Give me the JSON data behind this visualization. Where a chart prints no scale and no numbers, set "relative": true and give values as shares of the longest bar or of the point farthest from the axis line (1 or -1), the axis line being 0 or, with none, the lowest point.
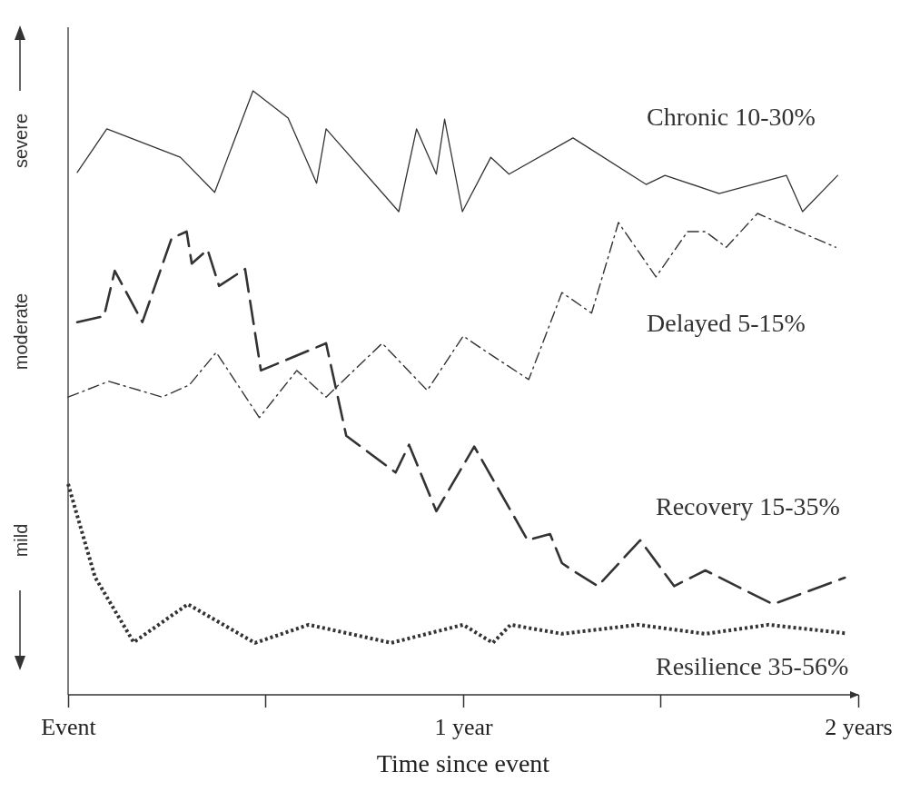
{
  "chart_data": {
    "type": "line",
    "relative": true,
    "xlabel": "Time since event",
    "annotations": [
      "severe",
      "moderate",
      "mild"
    ],
    "xlim": [
      0,
      2
    ],
    "xticks": [
      {
        "value": 0,
        "label": "Event"
      },
      {
        "value": 1,
        "label": "1 year"
      },
      {
        "value": 2,
        "label": "2 years"
      }
    ],
    "series": [
      {
        "name": "Chronic 10-30%",
        "color": "#333333",
        "line_style": "solid",
        "x": [
          0.023,
          0.098,
          0.284,
          0.371,
          0.468,
          0.557,
          0.629,
          0.653,
          0.837,
          0.882,
          0.932,
          0.953,
          0.998,
          1.07,
          1.116,
          1.278,
          1.463,
          1.511,
          1.648,
          1.818,
          1.859,
          1.948
        ],
        "values": [
          0.865,
          0.937,
          0.89,
          0.832,
          1.0,
          0.955,
          0.847,
          0.937,
          0.8,
          0.937,
          0.862,
          0.953,
          0.8,
          0.89,
          0.862,
          0.922,
          0.845,
          0.86,
          0.83,
          0.86,
          0.8,
          0.86
        ]
      },
      {
        "name": "Delayed 5-15%",
        "color": "#333333",
        "line_style": "dashdot",
        "x": [
          0,
          0.103,
          0.238,
          0.307,
          0.375,
          0.484,
          0.579,
          0.653,
          0.795,
          0.909,
          1.0,
          1.068,
          1.166,
          1.25,
          1.325,
          1.393,
          1.488,
          1.568,
          1.613,
          1.666,
          1.745,
          1.943
        ],
        "values": [
          0.493,
          0.519,
          0.493,
          0.513,
          0.567,
          0.459,
          0.537,
          0.493,
          0.582,
          0.504,
          0.594,
          0.564,
          0.522,
          0.666,
          0.632,
          0.782,
          0.692,
          0.767,
          0.767,
          0.741,
          0.797,
          0.741
        ]
      },
      {
        "name": "Recovery 15-35%",
        "color": "#333333",
        "line_style": "dashed",
        "x": [
          0.023,
          0.091,
          0.118,
          0.188,
          0.262,
          0.3,
          0.313,
          0.353,
          0.382,
          0.448,
          0.488,
          0.653,
          0.704,
          0.829,
          0.863,
          0.932,
          1.028,
          1.163,
          1.22,
          1.25,
          1.284,
          1.341,
          1.448,
          1.534,
          1.613,
          1.784,
          1.966
        ],
        "values": [
          0.617,
          0.627,
          0.702,
          0.617,
          0.756,
          0.767,
          0.714,
          0.737,
          0.677,
          0.705,
          0.537,
          0.582,
          0.429,
          0.368,
          0.414,
          0.304,
          0.411,
          0.256,
          0.266,
          0.218,
          0.203,
          0.18,
          0.256,
          0.18,
          0.206,
          0.15,
          0.194
        ]
      },
      {
        "name": "Resilience 35-56%",
        "color": "#333333",
        "line_style": "dotted",
        "x": [
          0,
          0.068,
          0.166,
          0.303,
          0.473,
          0.609,
          0.818,
          1.0,
          1.075,
          1.12,
          1.25,
          1.443,
          1.613,
          1.773,
          1.966
        ],
        "values": [
          0.349,
          0.195,
          0.087,
          0.15,
          0.086,
          0.116,
          0.086,
          0.116,
          0.086,
          0.116,
          0.101,
          0.116,
          0.101,
          0.116,
          0.102
        ]
      }
    ]
  }
}
